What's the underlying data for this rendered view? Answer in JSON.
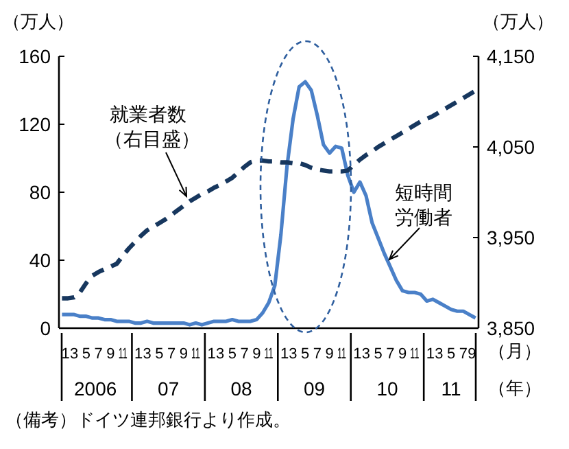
{
  "chart_data": {
    "type": "line",
    "ylabel": "（万人）",
    "y2label": "（万人）",
    "xlabel": "（月）",
    "categories": [
      "1",
      null,
      "3",
      null,
      "5",
      null,
      "7",
      null,
      "9",
      null,
      "11",
      null,
      "1",
      null,
      "3",
      null,
      "5",
      null,
      "7",
      null,
      "9",
      null,
      "11",
      null,
      "1",
      null,
      "3",
      null,
      "5",
      null,
      "7",
      null,
      "9",
      null,
      "11",
      null,
      "1",
      null,
      "3",
      null,
      "5",
      null,
      "7",
      null,
      "9",
      null,
      "11",
      null,
      "1",
      null,
      "3",
      null,
      "5",
      null,
      "7",
      null,
      "9",
      null,
      "11",
      null,
      "1",
      null,
      "3",
      null,
      "5",
      null,
      "7",
      null,
      "9"
    ],
    "series": [
      {
        "name": "短時間労働者",
        "color": "#4a80c8",
        "line_style": "solid",
        "values": [
          8,
          8,
          8,
          7,
          7,
          6,
          6,
          5,
          5,
          4,
          4,
          4,
          3,
          3,
          4,
          3,
          3,
          3,
          3,
          3,
          3,
          2,
          3,
          2,
          3,
          4,
          4,
          4,
          5,
          4,
          4,
          4,
          5,
          9,
          15,
          25,
          55,
          95,
          123,
          142,
          145,
          140,
          125,
          108,
          103,
          107,
          106,
          90,
          80,
          86,
          78,
          62,
          53,
          44,
          36,
          28,
          22,
          21,
          21,
          20,
          16,
          17,
          15,
          13,
          11,
          10,
          10,
          8,
          6
        ]
      },
      {
        "name": "就業者数（右目盛）",
        "color": "#17375e",
        "line_style": "dashed",
        "axis": "y2",
        "values": [
          3883,
          3883,
          3884,
          3890,
          3900,
          3908,
          3912,
          3915,
          3918,
          3921,
          3930,
          3938,
          3945,
          3952,
          3958,
          3962,
          3966,
          3970,
          3975,
          3980,
          3985,
          3990,
          3994,
          3998,
          4001,
          4005,
          4008,
          4012,
          4016,
          4022,
          4028,
          4033,
          4035,
          4035,
          4034,
          4034,
          4033,
          4033,
          4032,
          4032,
          4030,
          4027,
          4025,
          4024,
          4023,
          4023,
          4023,
          4024,
          4030,
          4036,
          4041,
          4045,
          4050,
          4054,
          4058,
          4062,
          4066,
          4070,
          4074,
          4078,
          4081,
          4084,
          4088,
          4092,
          4096,
          4100,
          4104,
          4108,
          4112
        ]
      }
    ],
    "ylim": [
      0,
      160
    ],
    "yticks": [
      0,
      40,
      80,
      120,
      160
    ],
    "y2lim": [
      3850,
      4150
    ],
    "y2ticks": [
      {
        "value": 3850,
        "label": "3,850"
      },
      {
        "value": 3950,
        "label": "3,950"
      },
      {
        "value": 4050,
        "label": "4,050"
      },
      {
        "value": 4150,
        "label": "4,150"
      }
    ],
    "grid": false,
    "marker": "none",
    "annotations": [
      "2006",
      "07",
      "08",
      "09",
      "10",
      "11",
      "（年）",
      "（備考）ドイツ連邦銀行より作成。"
    ]
  }
}
